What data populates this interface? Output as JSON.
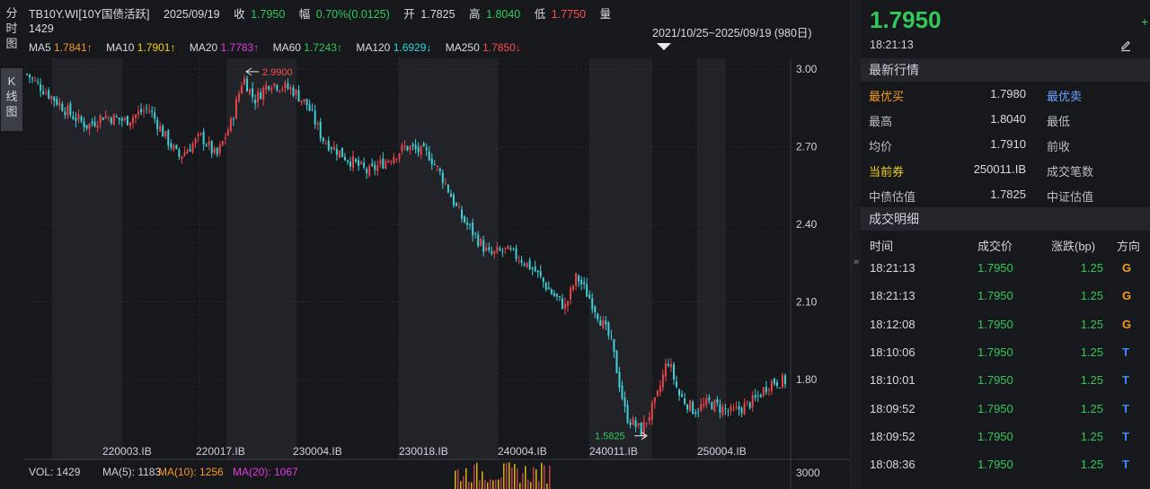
{
  "left_tabs": [
    {
      "label_lines": [
        "分",
        "时",
        "图"
      ],
      "active": false
    },
    {
      "label_lines": [
        "K",
        "线",
        "图"
      ],
      "active": true
    }
  ],
  "header": {
    "code": "TB10Y.WI[10Y国债活跃]",
    "date": "2025/09/19",
    "close_label": "收",
    "close_value": "1.7950",
    "change_label": "幅",
    "change_value": "0.70%(0.0125)",
    "open_label": "开",
    "open_value": "1.7825",
    "high_label": "高",
    "high_value": "1.8040",
    "low_label": "低",
    "low_value": "1.7750",
    "volume_label": "量",
    "volume_value": "1429"
  },
  "ma": [
    {
      "label": "MA5",
      "value": "1.7841↑",
      "color": "#f59a23"
    },
    {
      "label": "MA10",
      "value": "1.7901↑",
      "color": "#f2d21b"
    },
    {
      "label": "MA20",
      "value": "1.7783↑",
      "color": "#e03ce0"
    },
    {
      "label": "MA60",
      "value": "1.7243↑",
      "color": "#31c95a"
    },
    {
      "label": "MA120",
      "value": "1.6929↓",
      "color": "#33d6e0"
    },
    {
      "label": "MA250",
      "value": "1.7850↓",
      "color": "#ff4d4f"
    }
  ],
  "range_label": "2021/10/25~2025/09/19 (980日)",
  "annotations": {
    "max_label": "2.9900",
    "min_label": "1.5825"
  },
  "volume_bar": {
    "vol_label": "VOL: 1429",
    "ma5_label": "MA(5): 1183",
    "ma10_label": "MA(10): 1256",
    "ma20_label": "MA(20): 1067",
    "axis_label": "3000"
  },
  "chart_data": {
    "type": "candlestick",
    "y_ticks": [
      "3.00",
      "2.70",
      "2.40",
      "2.10",
      "1.80"
    ],
    "ylim": [
      1.55,
      3.05
    ],
    "x_labels": [
      "220003.IB",
      "220017.IB",
      "230004.IB",
      "230018.IB",
      "240004.IB",
      "240011.IB",
      "250004.IB"
    ],
    "max_point": 2.99,
    "min_point": 1.5825,
    "close_path": [
      {
        "t": 0.0,
        "v": 2.98
      },
      {
        "t": 0.03,
        "v": 2.9
      },
      {
        "t": 0.06,
        "v": 2.82
      },
      {
        "t": 0.08,
        "v": 2.78
      },
      {
        "t": 0.1,
        "v": 2.82
      },
      {
        "t": 0.13,
        "v": 2.8
      },
      {
        "t": 0.16,
        "v": 2.85
      },
      {
        "t": 0.18,
        "v": 2.75
      },
      {
        "t": 0.2,
        "v": 2.66
      },
      {
        "t": 0.23,
        "v": 2.74
      },
      {
        "t": 0.25,
        "v": 2.66
      },
      {
        "t": 0.27,
        "v": 2.8
      },
      {
        "t": 0.285,
        "v": 2.97
      },
      {
        "t": 0.3,
        "v": 2.88
      },
      {
        "t": 0.32,
        "v": 2.95
      },
      {
        "t": 0.35,
        "v": 2.92
      },
      {
        "t": 0.37,
        "v": 2.86
      },
      {
        "t": 0.39,
        "v": 2.73
      },
      {
        "t": 0.42,
        "v": 2.66
      },
      {
        "t": 0.45,
        "v": 2.6
      },
      {
        "t": 0.48,
        "v": 2.66
      },
      {
        "t": 0.5,
        "v": 2.7
      },
      {
        "t": 0.53,
        "v": 2.67
      },
      {
        "t": 0.55,
        "v": 2.57
      },
      {
        "t": 0.57,
        "v": 2.44
      },
      {
        "t": 0.59,
        "v": 2.36
      },
      {
        "t": 0.61,
        "v": 2.28
      },
      {
        "t": 0.63,
        "v": 2.3
      },
      {
        "t": 0.65,
        "v": 2.27
      },
      {
        "t": 0.67,
        "v": 2.22
      },
      {
        "t": 0.69,
        "v": 2.14
      },
      {
        "t": 0.71,
        "v": 2.08
      },
      {
        "t": 0.725,
        "v": 2.2
      },
      {
        "t": 0.745,
        "v": 2.1
      },
      {
        "t": 0.77,
        "v": 1.95
      },
      {
        "t": 0.79,
        "v": 1.66
      },
      {
        "t": 0.81,
        "v": 1.6
      },
      {
        "t": 0.83,
        "v": 1.72
      },
      {
        "t": 0.845,
        "v": 1.88
      },
      {
        "t": 0.86,
        "v": 1.74
      },
      {
        "t": 0.88,
        "v": 1.68
      },
      {
        "t": 0.9,
        "v": 1.71
      },
      {
        "t": 0.93,
        "v": 1.67
      },
      {
        "t": 0.96,
        "v": 1.72
      },
      {
        "t": 0.98,
        "v": 1.79
      },
      {
        "t": 1.0,
        "v": 1.795
      }
    ]
  },
  "right_panel": {
    "last_price": "1.7950",
    "last_time": "18:21:13",
    "plus_symbol": "+",
    "quote_title": "最新行情",
    "quotes": [
      {
        "label": "最优买",
        "value": "1.7980",
        "label2": "最优卖",
        "style": "bidask"
      },
      {
        "label": "最高",
        "value": "1.8040",
        "label2": "最低",
        "style": ""
      },
      {
        "label": "均价",
        "value": "1.7910",
        "label2": "前收",
        "style": ""
      },
      {
        "label": "当前券",
        "value": "250011.IB",
        "label2": "成交笔数",
        "style": "current"
      },
      {
        "label": "中债估值",
        "value": "1.7825",
        "label2": "中证估值",
        "style": ""
      }
    ],
    "trades_title": "成交明细",
    "trade_headers": {
      "time": "时间",
      "price": "成交价",
      "chg": "涨跌(bp)",
      "dir": "方向"
    },
    "trades": [
      {
        "time": "18:21:13",
        "price": "1.7950",
        "chg": "1.25",
        "dir": "G"
      },
      {
        "time": "18:21:13",
        "price": "1.7950",
        "chg": "1.25",
        "dir": "G"
      },
      {
        "time": "18:12:08",
        "price": "1.7950",
        "chg": "1.25",
        "dir": "G"
      },
      {
        "time": "18:10:06",
        "price": "1.7950",
        "chg": "1.25",
        "dir": "T"
      },
      {
        "time": "18:10:01",
        "price": "1.7950",
        "chg": "1.25",
        "dir": "T"
      },
      {
        "time": "18:09:52",
        "price": "1.7950",
        "chg": "1.25",
        "dir": "T"
      },
      {
        "time": "18:09:52",
        "price": "1.7950",
        "chg": "1.25",
        "dir": "T"
      },
      {
        "time": "18:08:36",
        "price": "1.7950",
        "chg": "1.25",
        "dir": "T"
      }
    ]
  }
}
